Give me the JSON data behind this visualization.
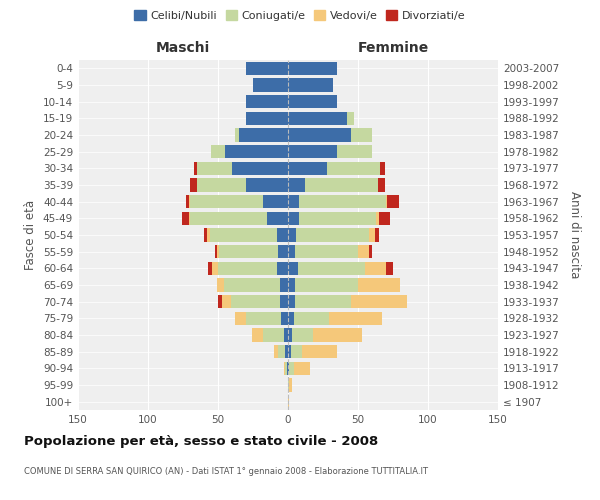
{
  "age_groups": [
    "100+",
    "95-99",
    "90-94",
    "85-89",
    "80-84",
    "75-79",
    "70-74",
    "65-69",
    "60-64",
    "55-59",
    "50-54",
    "45-49",
    "40-44",
    "35-39",
    "30-34",
    "25-29",
    "20-24",
    "15-19",
    "10-14",
    "5-9",
    "0-4"
  ],
  "birth_years": [
    "≤ 1907",
    "1908-1912",
    "1913-1917",
    "1918-1922",
    "1923-1927",
    "1928-1932",
    "1933-1937",
    "1938-1942",
    "1943-1947",
    "1948-1952",
    "1953-1957",
    "1958-1962",
    "1963-1967",
    "1968-1972",
    "1973-1977",
    "1978-1982",
    "1983-1987",
    "1988-1992",
    "1993-1997",
    "1998-2002",
    "2003-2007"
  ],
  "colors": {
    "celibi": "#3d6da8",
    "coniugati": "#c5d8a0",
    "vedovi": "#f5c87a",
    "divorziati": "#c0271e"
  },
  "maschi": {
    "celibi": [
      0,
      0,
      1,
      2,
      3,
      5,
      6,
      6,
      8,
      7,
      8,
      15,
      18,
      30,
      40,
      45,
      35,
      30,
      30,
      25,
      30
    ],
    "coniugati": [
      0,
      0,
      1,
      5,
      15,
      25,
      35,
      40,
      42,
      42,
      48,
      55,
      52,
      35,
      25,
      10,
      3,
      0,
      0,
      0,
      0
    ],
    "vedovi": [
      0,
      0,
      1,
      3,
      8,
      8,
      6,
      5,
      4,
      2,
      2,
      1,
      1,
      0,
      0,
      0,
      0,
      0,
      0,
      0,
      0
    ],
    "divorziati": [
      0,
      0,
      0,
      0,
      0,
      0,
      3,
      0,
      3,
      1,
      2,
      5,
      2,
      5,
      2,
      0,
      0,
      0,
      0,
      0,
      0
    ]
  },
  "femmine": {
    "celibi": [
      0,
      0,
      1,
      2,
      3,
      4,
      5,
      5,
      7,
      5,
      6,
      8,
      8,
      12,
      28,
      35,
      45,
      42,
      35,
      32,
      35
    ],
    "coniugati": [
      0,
      1,
      3,
      8,
      15,
      25,
      40,
      45,
      48,
      45,
      52,
      55,
      62,
      52,
      38,
      25,
      15,
      5,
      0,
      0,
      0
    ],
    "vedovi": [
      1,
      2,
      12,
      25,
      35,
      38,
      40,
      30,
      15,
      8,
      4,
      2,
      1,
      0,
      0,
      0,
      0,
      0,
      0,
      0,
      0
    ],
    "divorziati": [
      0,
      0,
      0,
      0,
      0,
      0,
      0,
      0,
      5,
      2,
      3,
      8,
      8,
      5,
      3,
      0,
      0,
      0,
      0,
      0,
      0
    ]
  },
  "title": "Popolazione per età, sesso e stato civile - 2008",
  "subtitle": "COMUNE DI SERRA SAN QUIRICO (AN) - Dati ISTAT 1° gennaio 2008 - Elaborazione TUTTITALIA.IT",
  "xlabel_left": "Maschi",
  "xlabel_right": "Femmine",
  "ylabel_left": "Fasce di età",
  "ylabel_right": "Anni di nascita",
  "legend_labels": [
    "Celibi/Nubili",
    "Coniugati/e",
    "Vedovi/e",
    "Divorziati/e"
  ],
  "xlim": 150,
  "background_color": "#ffffff",
  "plot_bg_color": "#efefef"
}
